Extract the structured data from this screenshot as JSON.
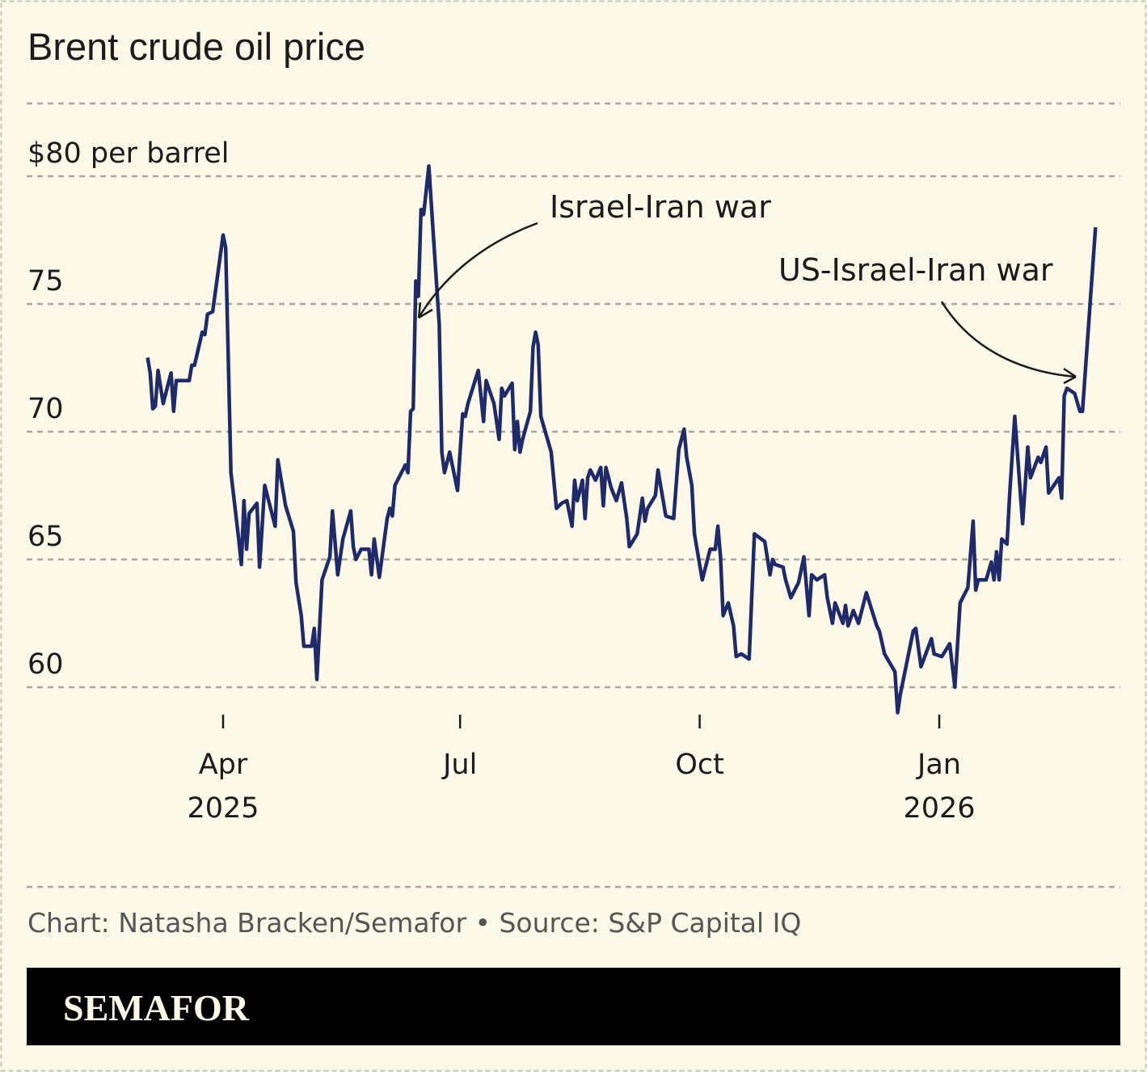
{
  "chart_data": {
    "type": "line",
    "title": "Brent crude oil price",
    "ylabel": "$80 per barrel",
    "ylim": [
      60,
      80
    ],
    "yticks": [
      {
        "value": 80,
        "label": "$80 per barrel"
      },
      {
        "value": 75,
        "label": "75"
      },
      {
        "value": 70,
        "label": "70"
      },
      {
        "value": 65,
        "label": "65"
      },
      {
        "value": 60,
        "label": "60"
      }
    ],
    "xticks": [
      {
        "date": "2025-04-01",
        "label": "Apr",
        "sublabel": "2025"
      },
      {
        "date": "2025-07-01",
        "label": "Jul",
        "sublabel": ""
      },
      {
        "date": "2025-10-01",
        "label": "Oct",
        "sublabel": ""
      },
      {
        "date": "2026-01-01",
        "label": "Jan",
        "sublabel": "2026"
      }
    ],
    "grid": true,
    "line_color": "#1f2a6b",
    "annotations": [
      {
        "text": "Israel-Iran war",
        "date": "2025-06-13"
      },
      {
        "text": "US-Israel-Iran war",
        "date": "2026-02-27"
      }
    ],
    "points": [
      [
        "2025-03-03",
        72.9
      ],
      [
        "2025-03-04",
        72.3
      ],
      [
        "2025-03-05",
        70.9
      ],
      [
        "2025-03-06",
        71.0
      ],
      [
        "2025-03-07",
        72.4
      ],
      [
        "2025-03-09",
        71.1
      ],
      [
        "2025-03-10",
        71.5
      ],
      [
        "2025-03-12",
        72.3
      ],
      [
        "2025-03-13",
        70.8
      ],
      [
        "2025-03-14",
        72.0
      ],
      [
        "2025-03-19",
        72.0
      ],
      [
        "2025-03-20",
        72.6
      ],
      [
        "2025-03-21",
        72.6
      ],
      [
        "2025-03-24",
        73.9
      ],
      [
        "2025-03-25",
        73.8
      ],
      [
        "2025-03-26",
        74.6
      ],
      [
        "2025-03-28",
        74.7
      ],
      [
        "2025-04-01",
        77.7
      ],
      [
        "2025-04-02",
        77.2
      ],
      [
        "2025-04-04",
        68.4
      ],
      [
        "2025-04-07",
        65.8
      ],
      [
        "2025-04-08",
        64.8
      ],
      [
        "2025-04-09",
        67.3
      ],
      [
        "2025-04-10",
        65.4
      ],
      [
        "2025-04-11",
        66.8
      ],
      [
        "2025-04-14",
        67.2
      ],
      [
        "2025-04-15",
        64.7
      ],
      [
        "2025-04-17",
        67.9
      ],
      [
        "2025-04-21",
        66.3
      ],
      [
        "2025-04-22",
        68.9
      ],
      [
        "2025-04-25",
        67.1
      ],
      [
        "2025-04-28",
        66.1
      ],
      [
        "2025-04-29",
        64.1
      ],
      [
        "2025-05-01",
        62.8
      ],
      [
        "2025-05-02",
        61.6
      ],
      [
        "2025-05-05",
        61.6
      ],
      [
        "2025-05-06",
        62.3
      ],
      [
        "2025-05-07",
        60.3
      ],
      [
        "2025-05-09",
        64.2
      ],
      [
        "2025-05-12",
        65.1
      ],
      [
        "2025-05-13",
        66.9
      ],
      [
        "2025-05-15",
        64.4
      ],
      [
        "2025-05-17",
        65.8
      ],
      [
        "2025-05-20",
        66.9
      ],
      [
        "2025-05-21",
        65.5
      ],
      [
        "2025-05-22",
        65.0
      ],
      [
        "2025-05-24",
        65.4
      ],
      [
        "2025-05-27",
        65.4
      ],
      [
        "2025-05-28",
        64.4
      ],
      [
        "2025-05-29",
        65.8
      ],
      [
        "2025-05-31",
        64.3
      ],
      [
        "2025-06-03",
        66.6
      ],
      [
        "2025-06-04",
        67.0
      ],
      [
        "2025-06-05",
        66.7
      ],
      [
        "2025-06-06",
        67.9
      ],
      [
        "2025-06-10",
        68.7
      ],
      [
        "2025-06-11",
        68.4
      ],
      [
        "2025-06-12",
        70.8
      ],
      [
        "2025-06-13",
        70.9
      ],
      [
        "2025-06-14",
        75.9
      ],
      [
        "2025-06-15",
        75.3
      ],
      [
        "2025-06-16",
        78.7
      ],
      [
        "2025-06-17",
        78.5
      ],
      [
        "2025-06-19",
        80.4
      ],
      [
        "2025-06-23",
        74.2
      ],
      [
        "2025-06-24",
        69.2
      ],
      [
        "2025-06-25",
        68.4
      ],
      [
        "2025-06-27",
        69.2
      ],
      [
        "2025-06-30",
        67.7
      ],
      [
        "2025-07-02",
        70.7
      ],
      [
        "2025-07-03",
        70.6
      ],
      [
        "2025-07-04",
        71.1
      ],
      [
        "2025-07-08",
        72.4
      ],
      [
        "2025-07-10",
        70.4
      ],
      [
        "2025-07-11",
        72.0
      ],
      [
        "2025-07-14",
        71.1
      ],
      [
        "2025-07-16",
        69.7
      ],
      [
        "2025-07-17",
        71.7
      ],
      [
        "2025-07-18",
        71.4
      ],
      [
        "2025-07-21",
        71.9
      ],
      [
        "2025-07-22",
        69.3
      ],
      [
        "2025-07-23",
        70.4
      ],
      [
        "2025-07-24",
        69.2
      ],
      [
        "2025-07-25",
        69.7
      ],
      [
        "2025-07-28",
        70.8
      ],
      [
        "2025-07-29",
        73.3
      ],
      [
        "2025-07-30",
        73.9
      ],
      [
        "2025-07-31",
        73.4
      ],
      [
        "2025-08-01",
        70.6
      ],
      [
        "2025-08-05",
        69.2
      ],
      [
        "2025-08-07",
        67.0
      ],
      [
        "2025-08-09",
        67.2
      ],
      [
        "2025-08-11",
        67.3
      ],
      [
        "2025-08-13",
        66.3
      ],
      [
        "2025-08-14",
        68.1
      ],
      [
        "2025-08-15",
        67.3
      ],
      [
        "2025-08-17",
        68.1
      ],
      [
        "2025-08-18",
        66.6
      ],
      [
        "2025-08-19",
        68.2
      ],
      [
        "2025-08-20",
        68.5
      ],
      [
        "2025-08-22",
        68.1
      ],
      [
        "2025-08-24",
        68.6
      ],
      [
        "2025-08-25",
        67.1
      ],
      [
        "2025-08-26",
        68.6
      ],
      [
        "2025-08-28",
        67.8
      ],
      [
        "2025-08-30",
        67.3
      ],
      [
        "2025-09-01",
        68.0
      ],
      [
        "2025-09-03",
        66.6
      ],
      [
        "2025-09-04",
        65.5
      ],
      [
        "2025-09-07",
        66.0
      ],
      [
        "2025-09-09",
        67.4
      ],
      [
        "2025-09-10",
        66.5
      ],
      [
        "2025-09-11",
        67.0
      ],
      [
        "2025-09-14",
        67.5
      ],
      [
        "2025-09-15",
        68.5
      ],
      [
        "2025-09-18",
        66.7
      ],
      [
        "2025-09-21",
        66.6
      ],
      [
        "2025-09-23",
        69.3
      ],
      [
        "2025-09-25",
        70.1
      ],
      [
        "2025-09-26",
        69.0
      ],
      [
        "2025-09-28",
        67.9
      ],
      [
        "2025-09-29",
        66.0
      ],
      [
        "2025-10-02",
        64.2
      ],
      [
        "2025-10-05",
        65.4
      ],
      [
        "2025-10-07",
        65.4
      ],
      [
        "2025-10-08",
        66.3
      ],
      [
        "2025-10-09",
        65.1
      ],
      [
        "2025-10-10",
        62.8
      ],
      [
        "2025-10-12",
        63.3
      ],
      [
        "2025-10-14",
        62.4
      ],
      [
        "2025-10-15",
        61.2
      ],
      [
        "2025-10-17",
        61.3
      ],
      [
        "2025-10-20",
        61.1
      ],
      [
        "2025-10-22",
        66.0
      ],
      [
        "2025-10-26",
        65.7
      ],
      [
        "2025-10-28",
        64.4
      ],
      [
        "2025-10-29",
        65.0
      ],
      [
        "2025-10-30",
        64.8
      ],
      [
        "2025-11-02",
        64.7
      ],
      [
        "2025-11-03",
        64.2
      ],
      [
        "2025-11-05",
        63.5
      ],
      [
        "2025-11-08",
        64.1
      ],
      [
        "2025-11-10",
        65.1
      ],
      [
        "2025-11-12",
        62.8
      ],
      [
        "2025-11-13",
        64.4
      ],
      [
        "2025-11-15",
        64.2
      ],
      [
        "2025-11-18",
        64.4
      ],
      [
        "2025-11-19",
        63.5
      ],
      [
        "2025-11-21",
        62.5
      ],
      [
        "2025-11-22",
        63.3
      ],
      [
        "2025-11-25",
        62.5
      ],
      [
        "2025-11-26",
        63.2
      ],
      [
        "2025-11-27",
        62.4
      ],
      [
        "2025-11-29",
        63.0
      ],
      [
        "2025-12-01",
        62.5
      ],
      [
        "2025-12-04",
        63.7
      ],
      [
        "2025-12-08",
        62.4
      ],
      [
        "2025-12-09",
        62.2
      ],
      [
        "2025-12-11",
        61.3
      ],
      [
        "2025-12-15",
        60.6
      ],
      [
        "2025-12-16",
        59.0
      ],
      [
        "2025-12-17",
        59.7
      ],
      [
        "2025-12-22",
        62.2
      ],
      [
        "2025-12-23",
        62.3
      ],
      [
        "2025-12-25",
        60.8
      ],
      [
        "2025-12-29",
        61.9
      ],
      [
        "2025-12-30",
        61.3
      ],
      [
        "2026-01-02",
        61.2
      ],
      [
        "2026-01-05",
        61.7
      ],
      [
        "2026-01-07",
        60.0
      ],
      [
        "2026-01-09",
        63.3
      ],
      [
        "2026-01-12",
        63.9
      ],
      [
        "2026-01-14",
        66.5
      ],
      [
        "2026-01-15",
        63.8
      ],
      [
        "2026-01-16",
        64.2
      ],
      [
        "2026-01-19",
        64.2
      ],
      [
        "2026-01-21",
        64.9
      ],
      [
        "2026-01-22",
        64.2
      ],
      [
        "2026-01-23",
        65.3
      ],
      [
        "2026-01-24",
        64.2
      ],
      [
        "2026-01-25",
        65.8
      ],
      [
        "2026-01-27",
        65.6
      ],
      [
        "2026-01-28",
        67.5
      ],
      [
        "2026-01-30",
        70.6
      ],
      [
        "2026-02-02",
        66.4
      ],
      [
        "2026-02-04",
        69.4
      ],
      [
        "2026-02-05",
        68.2
      ],
      [
        "2026-02-08",
        69.0
      ],
      [
        "2026-02-09",
        68.8
      ],
      [
        "2026-02-11",
        69.4
      ],
      [
        "2026-02-12",
        67.6
      ],
      [
        "2026-02-16",
        68.2
      ],
      [
        "2026-02-17",
        67.4
      ],
      [
        "2026-02-18",
        71.4
      ],
      [
        "2026-02-19",
        71.7
      ],
      [
        "2026-02-22",
        71.5
      ],
      [
        "2026-02-24",
        70.8
      ],
      [
        "2026-02-25",
        70.8
      ],
      [
        "2026-03-02",
        78.0
      ]
    ]
  },
  "footer": {
    "credit": "Chart: Natasha Bracken/Semafor • Source: S&P Capital IQ",
    "brand": "SEMAFOR"
  }
}
